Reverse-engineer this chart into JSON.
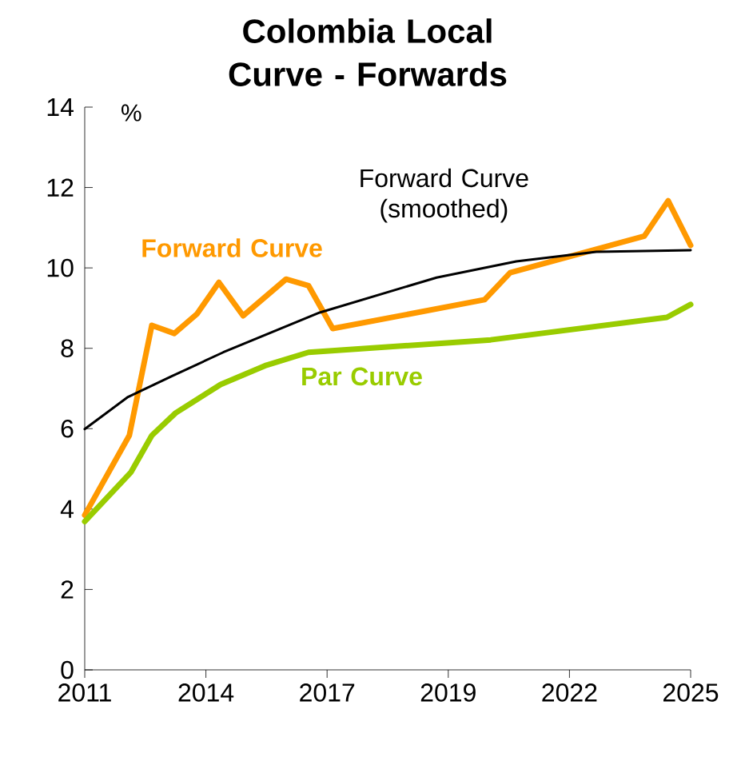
{
  "chart_data": {
    "type": "line",
    "title": "Colombia Local Curve - Forwards",
    "ylabel": "%",
    "xlim": [
      2011,
      2025
    ],
    "ylim": [
      0,
      14
    ],
    "xticks": [
      {
        "value": 2011,
        "label": "2011"
      },
      {
        "value": 2013.8,
        "label": "2014"
      },
      {
        "value": 2016.6,
        "label": "2017"
      },
      {
        "value": 2019.4,
        "label": "2019"
      },
      {
        "value": 2022.2,
        "label": "2022"
      },
      {
        "value": 2025,
        "label": "2025"
      }
    ],
    "yticks": [
      0,
      2,
      4,
      6,
      8,
      10,
      12,
      14
    ],
    "grid": false,
    "legend": false,
    "marker": "none",
    "line_style": "solid",
    "series": [
      {
        "name": "Forward Curve",
        "color": "#ff9900",
        "x": [
          2011,
          2012.03,
          2012.55,
          2013.07,
          2013.59,
          2014.1,
          2014.66,
          2015.65,
          2016.17,
          2016.73,
          2020.24,
          2020.83,
          2023.93,
          2024.48,
          2025
        ],
        "values": [
          3.85,
          5.83,
          8.57,
          8.37,
          8.85,
          9.64,
          8.81,
          9.72,
          9.56,
          8.49,
          9.21,
          9.88,
          10.79,
          11.67,
          10.56
        ]
      },
      {
        "name": "Forward Curve (smoothed)",
        "color": "#000000",
        "x": [
          2011,
          2012,
          2013,
          2014.2,
          2016.43,
          2019.13,
          2020.97,
          2022.82,
          2025
        ],
        "values": [
          5.99,
          6.79,
          7.3,
          7.9,
          8.89,
          9.76,
          10.16,
          10.4,
          10.44
        ]
      },
      {
        "name": "Par Curve",
        "color": "#99cc00",
        "x": [
          2011,
          2012.07,
          2012.55,
          2013.1,
          2014.14,
          2015.2,
          2016.17,
          2020.38,
          2024.45,
          2025
        ],
        "values": [
          3.69,
          4.92,
          5.83,
          6.39,
          7.1,
          7.58,
          7.9,
          8.21,
          8.77,
          9.09
        ]
      }
    ]
  }
}
